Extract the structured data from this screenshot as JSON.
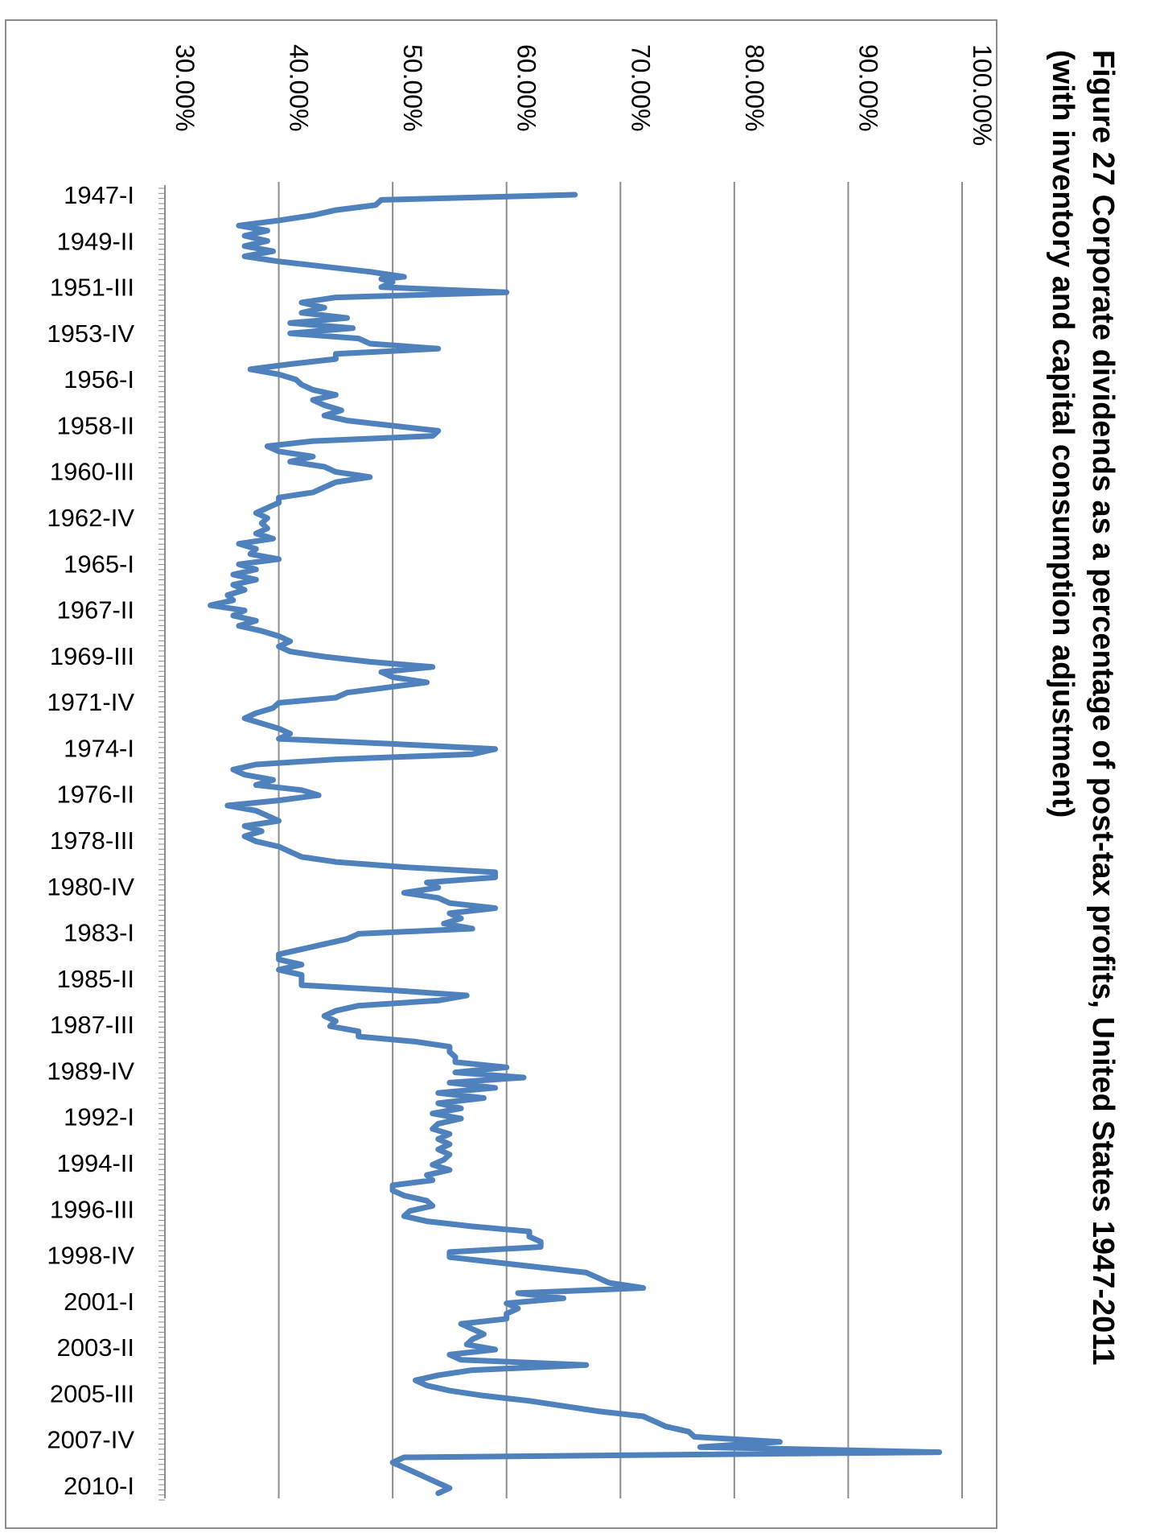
{
  "chart_data": {
    "type": "line",
    "title_line1": "Figure 27 Corporate dividends as a percentage of post-tax profits, United States 1947-2011",
    "title_line2": "(with inventory and capital consumption adjustment)",
    "xlabel": "",
    "ylabel": "",
    "ylim": [
      30,
      100
    ],
    "y_ticks": [
      "30.00%",
      "40.00%",
      "50.00%",
      "60.00%",
      "70.00%",
      "80.00%",
      "90.00%",
      "100.00%"
    ],
    "x_ticks": [
      "1947-I",
      "1949-II",
      "1951-III",
      "1953-IV",
      "1956-I",
      "1958-II",
      "1960-III",
      "1962-IV",
      "1965-I",
      "1967-II",
      "1969-III",
      "1971-IV",
      "1974-I",
      "1976-II",
      "1978-III",
      "1980-IV",
      "1983-I",
      "1985-II",
      "1987-III",
      "1989-IV",
      "1992-I",
      "1994-II",
      "1996-III",
      "1998-IV",
      "2001-I",
      "2003-II",
      "2005-III",
      "2007-IV",
      "2010-I"
    ],
    "grid": true,
    "series_color": "#4f81bd",
    "series": [
      {
        "name": "",
        "points": [
          [
            1947.0,
            66
          ],
          [
            1947.25,
            49
          ],
          [
            1947.5,
            48.5
          ],
          [
            1947.75,
            45
          ],
          [
            1948.0,
            43
          ],
          [
            1948.25,
            40
          ],
          [
            1948.5,
            36.5
          ],
          [
            1948.75,
            39
          ],
          [
            1949.0,
            37
          ],
          [
            1949.25,
            39
          ],
          [
            1949.5,
            37
          ],
          [
            1949.75,
            39.5
          ],
          [
            1950.0,
            37
          ],
          [
            1950.25,
            40
          ],
          [
            1950.5,
            44
          ],
          [
            1950.75,
            48
          ],
          [
            1951.0,
            51
          ],
          [
            1951.1,
            49
          ],
          [
            1951.25,
            50
          ],
          [
            1951.5,
            49
          ],
          [
            1951.75,
            60
          ],
          [
            1952.0,
            45
          ],
          [
            1952.25,
            42
          ],
          [
            1952.5,
            44
          ],
          [
            1952.75,
            42
          ],
          [
            1953.0,
            46
          ],
          [
            1953.25,
            41
          ],
          [
            1953.5,
            46.5
          ],
          [
            1953.75,
            41
          ],
          [
            1954.0,
            47
          ],
          [
            1954.25,
            48
          ],
          [
            1954.5,
            54
          ],
          [
            1954.75,
            45
          ],
          [
            1955.0,
            45
          ],
          [
            1955.25,
            41
          ],
          [
            1955.5,
            37.5
          ],
          [
            1955.75,
            40
          ],
          [
            1956.0,
            41.5
          ],
          [
            1956.25,
            42
          ],
          [
            1956.5,
            43
          ],
          [
            1956.75,
            45
          ],
          [
            1957.0,
            43
          ],
          [
            1957.25,
            44
          ],
          [
            1957.5,
            45.5
          ],
          [
            1957.75,
            44
          ],
          [
            1958.0,
            46
          ],
          [
            1958.25,
            50
          ],
          [
            1958.5,
            54
          ],
          [
            1958.75,
            53.5
          ],
          [
            1959.0,
            43
          ],
          [
            1959.25,
            39
          ],
          [
            1959.5,
            40
          ],
          [
            1959.75,
            43
          ],
          [
            1960.0,
            41
          ],
          [
            1960.25,
            44
          ],
          [
            1960.5,
            45
          ],
          [
            1960.75,
            48
          ],
          [
            1961.0,
            45
          ],
          [
            1961.25,
            44
          ],
          [
            1961.5,
            43
          ],
          [
            1961.75,
            40
          ],
          [
            1962.0,
            40
          ],
          [
            1962.25,
            39
          ],
          [
            1962.5,
            38
          ],
          [
            1962.75,
            39
          ],
          [
            1963.0,
            38.5
          ],
          [
            1963.25,
            39
          ],
          [
            1963.5,
            38
          ],
          [
            1963.75,
            39.5
          ],
          [
            1964.0,
            36.5
          ],
          [
            1964.25,
            38
          ],
          [
            1964.5,
            37.5
          ],
          [
            1964.75,
            40
          ],
          [
            1965.0,
            36.5
          ],
          [
            1965.25,
            38
          ],
          [
            1965.5,
            36
          ],
          [
            1965.75,
            38
          ],
          [
            1966.0,
            36
          ],
          [
            1966.25,
            37
          ],
          [
            1966.5,
            35.5
          ],
          [
            1966.75,
            36
          ],
          [
            1967.0,
            34
          ],
          [
            1967.25,
            37
          ],
          [
            1967.5,
            36
          ],
          [
            1967.75,
            38
          ],
          [
            1968.0,
            36.5
          ],
          [
            1968.25,
            38.5
          ],
          [
            1968.5,
            40
          ],
          [
            1968.75,
            41
          ],
          [
            1969.0,
            40
          ],
          [
            1969.25,
            41
          ],
          [
            1969.5,
            44
          ],
          [
            1969.75,
            48
          ],
          [
            1970.0,
            53.5
          ],
          [
            1970.25,
            49
          ],
          [
            1970.5,
            50
          ],
          [
            1970.75,
            53
          ],
          [
            1971.0,
            49.5
          ],
          [
            1971.25,
            46
          ],
          [
            1971.5,
            45
          ],
          [
            1971.75,
            40
          ],
          [
            1972.0,
            39.5
          ],
          [
            1972.25,
            38
          ],
          [
            1972.5,
            37
          ],
          [
            1973.0,
            40
          ],
          [
            1973.25,
            41
          ],
          [
            1973.5,
            40
          ],
          [
            1973.75,
            50
          ],
          [
            1974.0,
            59
          ],
          [
            1974.25,
            57
          ],
          [
            1974.5,
            45
          ],
          [
            1974.75,
            38
          ],
          [
            1975.0,
            36
          ],
          [
            1975.25,
            37
          ],
          [
            1975.5,
            39.5
          ],
          [
            1975.75,
            38
          ],
          [
            1976.0,
            42
          ],
          [
            1976.25,
            43.5
          ],
          [
            1976.5,
            40
          ],
          [
            1976.75,
            35.5
          ],
          [
            1977.0,
            38
          ],
          [
            1977.25,
            39
          ],
          [
            1977.5,
            40
          ],
          [
            1977.75,
            37
          ],
          [
            1978.0,
            38.5
          ],
          [
            1978.25,
            37
          ],
          [
            1978.5,
            38
          ],
          [
            1978.75,
            40
          ],
          [
            1979.0,
            41
          ],
          [
            1979.25,
            42
          ],
          [
            1979.5,
            45
          ],
          [
            1979.75,
            51
          ],
          [
            1980.0,
            59
          ],
          [
            1980.25,
            59
          ],
          [
            1980.5,
            53
          ],
          [
            1980.75,
            54
          ],
          [
            1981.0,
            51
          ],
          [
            1981.25,
            54
          ],
          [
            1981.5,
            55
          ],
          [
            1981.75,
            59
          ],
          [
            1982.0,
            55
          ],
          [
            1982.25,
            56
          ],
          [
            1982.5,
            54.5
          ],
          [
            1982.75,
            57
          ],
          [
            1983.0,
            47
          ],
          [
            1983.25,
            46
          ],
          [
            1983.5,
            44
          ],
          [
            1983.75,
            42
          ],
          [
            1984.0,
            40
          ],
          [
            1984.25,
            40
          ],
          [
            1984.5,
            42
          ],
          [
            1984.75,
            40
          ],
          [
            1985.0,
            42
          ],
          [
            1985.25,
            42
          ],
          [
            1985.5,
            42
          ],
          [
            1985.75,
            50
          ],
          [
            1986.0,
            56.5
          ],
          [
            1986.25,
            54
          ],
          [
            1986.5,
            47
          ],
          [
            1986.75,
            45
          ],
          [
            1987.0,
            44
          ],
          [
            1987.25,
            45
          ],
          [
            1987.5,
            44.5
          ],
          [
            1987.75,
            47
          ],
          [
            1988.0,
            47
          ],
          [
            1988.25,
            52
          ],
          [
            1988.5,
            55
          ],
          [
            1988.75,
            55
          ],
          [
            1989.0,
            55.5
          ],
          [
            1989.25,
            55.5
          ],
          [
            1989.5,
            60
          ],
          [
            1989.75,
            55.5
          ],
          [
            1990.0,
            61.5
          ],
          [
            1990.25,
            55
          ],
          [
            1990.5,
            59
          ],
          [
            1990.75,
            54
          ],
          [
            1991.0,
            58
          ],
          [
            1991.25,
            54
          ],
          [
            1991.5,
            56
          ],
          [
            1991.75,
            53.5
          ],
          [
            1992.0,
            56
          ],
          [
            1992.25,
            54
          ],
          [
            1992.5,
            53.5
          ],
          [
            1992.75,
            55
          ],
          [
            1993.0,
            54
          ],
          [
            1993.25,
            55
          ],
          [
            1993.5,
            54
          ],
          [
            1993.75,
            55
          ],
          [
            1994.0,
            54.5
          ],
          [
            1994.25,
            53.5
          ],
          [
            1994.5,
            55
          ],
          [
            1994.75,
            53
          ],
          [
            1995.0,
            53.5
          ],
          [
            1995.25,
            50
          ],
          [
            1995.5,
            50
          ],
          [
            1995.75,
            51
          ],
          [
            1996.0,
            53
          ],
          [
            1996.25,
            53.5
          ],
          [
            1996.5,
            51.5
          ],
          [
            1996.75,
            51
          ],
          [
            1997.0,
            53
          ],
          [
            1997.25,
            57
          ],
          [
            1997.5,
            62
          ],
          [
            1997.75,
            62
          ],
          [
            1998.0,
            63
          ],
          [
            1998.25,
            63
          ],
          [
            1998.5,
            55
          ],
          [
            1998.75,
            55
          ],
          [
            1999.0,
            59
          ],
          [
            1999.25,
            63
          ],
          [
            1999.5,
            67
          ],
          [
            1999.75,
            68
          ],
          [
            2000.0,
            69
          ],
          [
            2000.25,
            72
          ],
          [
            2000.5,
            61
          ],
          [
            2000.75,
            65
          ],
          [
            2001.0,
            60
          ],
          [
            2001.25,
            61
          ],
          [
            2001.5,
            60
          ],
          [
            2001.75,
            60
          ],
          [
            2002.0,
            56
          ],
          [
            2002.25,
            57
          ],
          [
            2002.5,
            58
          ],
          [
            2002.75,
            57
          ],
          [
            2003.0,
            56.5
          ],
          [
            2003.25,
            59
          ],
          [
            2003.5,
            55
          ],
          [
            2003.75,
            56
          ],
          [
            2004.0,
            67
          ],
          [
            2004.25,
            57
          ],
          [
            2004.5,
            54
          ],
          [
            2004.75,
            52
          ],
          [
            2005.0,
            53
          ],
          [
            2005.25,
            55
          ],
          [
            2005.5,
            58
          ],
          [
            2005.75,
            62
          ],
          [
            2006.0,
            65
          ],
          [
            2006.25,
            68
          ],
          [
            2006.5,
            72
          ],
          [
            2006.75,
            73
          ],
          [
            2007.0,
            74
          ],
          [
            2007.25,
            76
          ],
          [
            2007.5,
            76.5
          ],
          [
            2007.75,
            84
          ],
          [
            2008.0,
            77
          ],
          [
            2008.25,
            98
          ],
          [
            2008.5,
            51
          ],
          [
            2008.75,
            50
          ],
          [
            2009.0,
            51
          ],
          [
            2009.25,
            52
          ],
          [
            2009.5,
            53
          ],
          [
            2009.75,
            54
          ],
          [
            2010.0,
            55
          ],
          [
            2010.25,
            54
          ]
        ]
      }
    ]
  }
}
